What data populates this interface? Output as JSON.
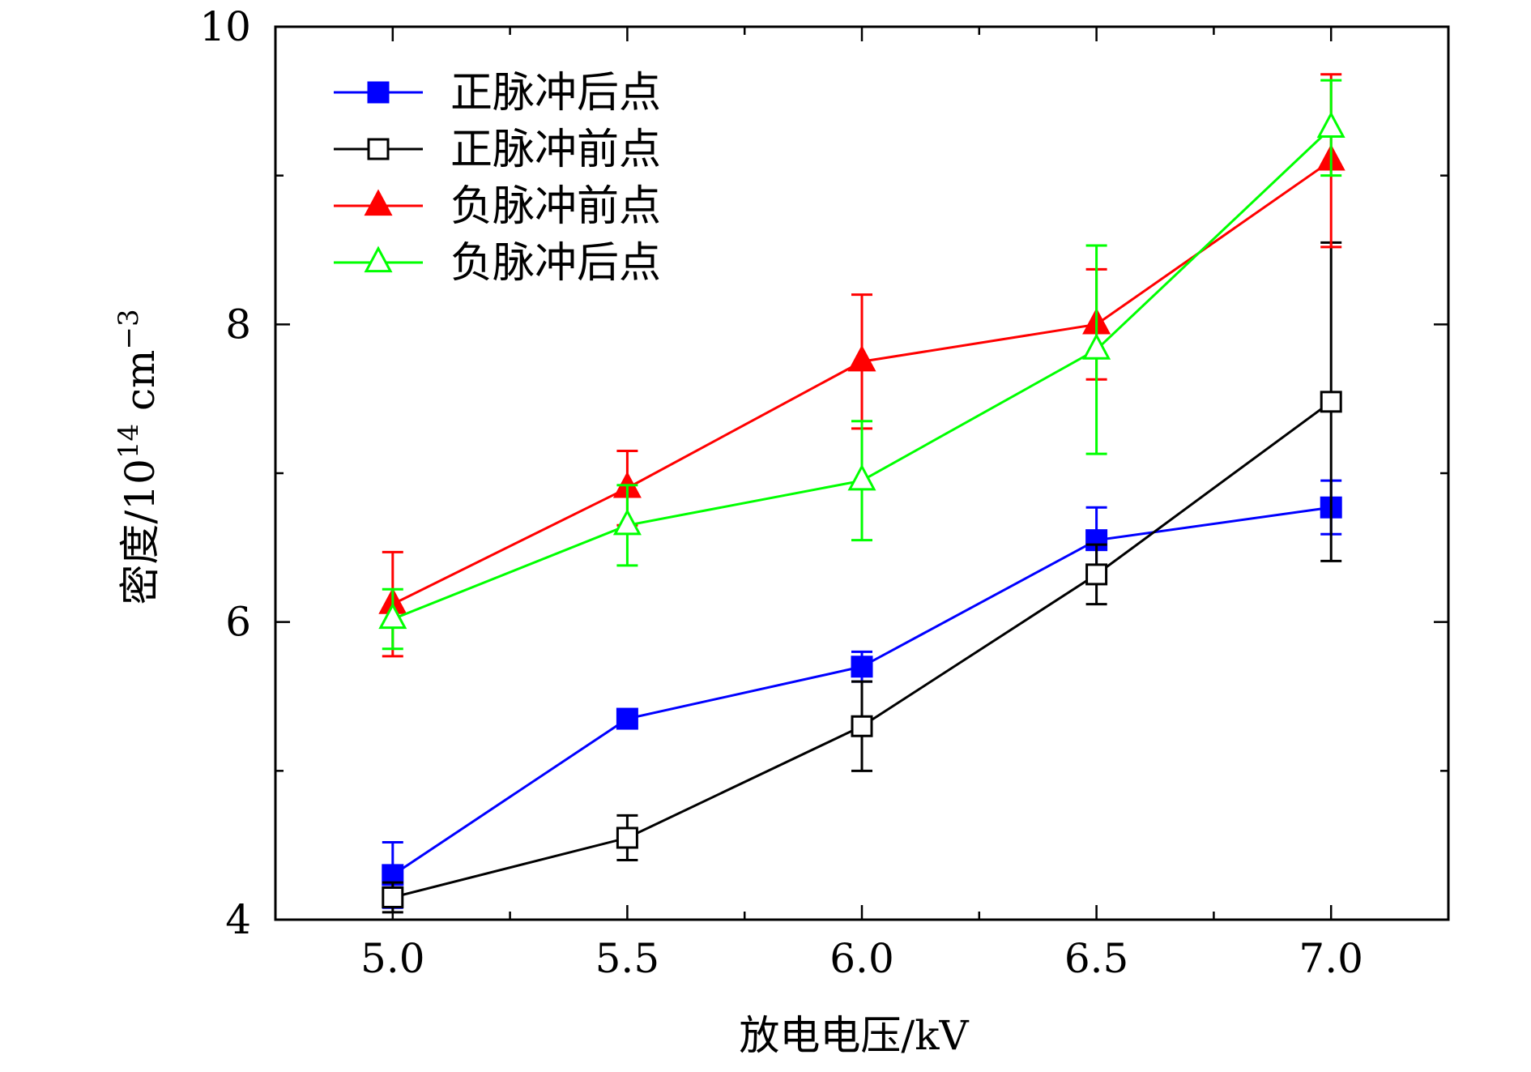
{
  "chart_data": {
    "type": "line",
    "xlabel": "放电电压/kV",
    "ylabel_main": "密度/10",
    "ylabel_exp1": "14",
    "ylabel_unit": " cm",
    "ylabel_exp2": "−3",
    "x": [
      5.0,
      5.5,
      6.0,
      6.5,
      7.0
    ],
    "x_tick_labels": [
      "5.0",
      "5.5",
      "6.0",
      "6.5",
      "7.0"
    ],
    "xlim": [
      4.75,
      7.25
    ],
    "ylim": [
      4,
      10
    ],
    "y_ticks": [
      4,
      6,
      8,
      10
    ],
    "y_tick_labels": [
      "4",
      "6",
      "8",
      "10"
    ],
    "legend_position": "top-left",
    "series": [
      {
        "name": "正脉冲后点",
        "color": "#0000ff",
        "marker": "square-filled",
        "values": [
          4.3,
          5.35,
          5.7,
          6.55,
          6.77
        ],
        "errors": [
          0.22,
          0.0,
          0.1,
          0.22,
          0.18
        ]
      },
      {
        "name": "正脉冲前点",
        "color": "#000000",
        "marker": "square-open",
        "values": [
          4.15,
          4.55,
          5.3,
          6.32,
          7.48
        ],
        "errors": [
          0.1,
          0.15,
          0.3,
          0.2,
          1.07
        ]
      },
      {
        "name": "负脉冲前点",
        "color": "#ff0000",
        "marker": "triangle-filled",
        "values": [
          6.12,
          6.9,
          7.75,
          8.0,
          9.1
        ],
        "errors": [
          0.35,
          0.25,
          0.45,
          0.37,
          0.58
        ]
      },
      {
        "name": "负脉冲后点",
        "color": "#00ff00",
        "marker": "triangle-open",
        "values": [
          6.02,
          6.65,
          6.95,
          7.83,
          9.32
        ],
        "errors": [
          0.2,
          0.27,
          0.4,
          0.7,
          0.32
        ]
      }
    ]
  }
}
